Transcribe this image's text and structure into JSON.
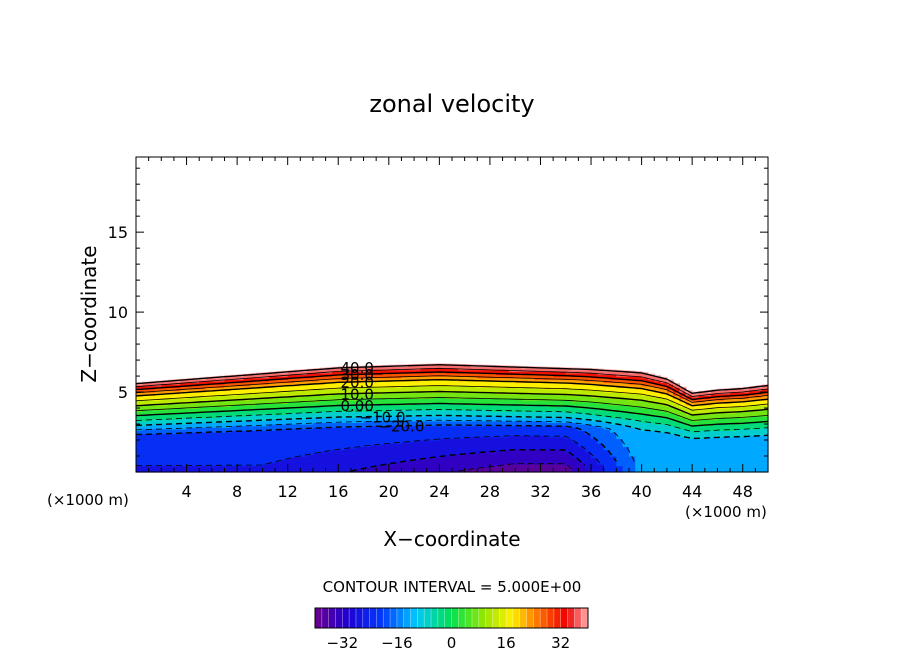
{
  "chart_data": {
    "type": "contour",
    "title": "zonal velocity",
    "xlabel": "X−coordinate",
    "ylabel": "Z−coordinate",
    "x_unit_left": "(×1000 m)",
    "x_unit_right": "(×1000 m)",
    "xlim": [
      0,
      50
    ],
    "ylim": [
      0,
      19.7
    ],
    "x_ticks": [
      "4",
      "8",
      "12",
      "16",
      "20",
      "24",
      "28",
      "32",
      "36",
      "40",
      "44",
      "48"
    ],
    "y_ticks": [
      "5",
      "10",
      "15"
    ],
    "contour_interval_text": "CONTOUR INTERVAL = 5.000E+00",
    "contour_labels": [
      "40.0",
      "30.0",
      "20.0",
      "10.0",
      "0.00",
      "−10.0",
      "−20.0"
    ],
    "colorbar_ticks": [
      "−32",
      "−16",
      "0",
      "16",
      "32"
    ],
    "colorbar_range": [
      -40,
      40
    ],
    "field": {
      "top_x": [
        0,
        8,
        16,
        24,
        32,
        36,
        40,
        42,
        44,
        46,
        48,
        50
      ],
      "top_z": [
        5.6,
        6.1,
        6.6,
        6.8,
        6.6,
        6.5,
        6.3,
        5.9,
        5.0,
        5.2,
        5.3,
        5.5
      ],
      "fractions": [
        0,
        0.42,
        0.52,
        0.63,
        0.74,
        0.85,
        0.92,
        1.0
      ],
      "values_left": [
        -26,
        -20,
        -10,
        0,
        10,
        20,
        30,
        42
      ],
      "values_mid": [
        -38,
        -22,
        -10,
        0,
        10,
        20,
        30,
        42
      ],
      "values_right": [
        -14,
        -10,
        -4,
        4,
        12,
        22,
        32,
        42
      ]
    },
    "colors": {
      "background": "#ffffff",
      "axis": "#000000",
      "contour": "#000000"
    }
  }
}
